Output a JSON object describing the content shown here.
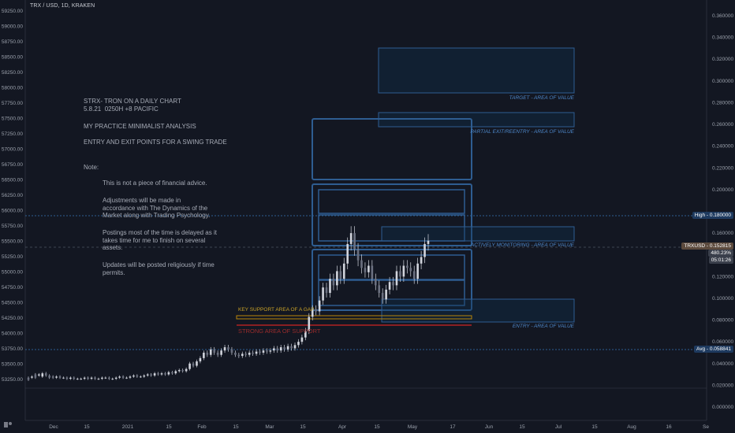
{
  "header": {
    "title": "TRX / USD, 1D, KRAKEN"
  },
  "notes": {
    "title_line1": "STRX- TRON ON A DAILY CHART",
    "title_line2": "5.8.21  0250H +8 PACIFIC",
    "line3": "MY PRACTICE MINIMALIST ANALYSIS",
    "line4": "ENTRY AND EXIT POINTS FOR A SWING TRADE",
    "note_label": "Note:",
    "p1": "This is not a piece of financial advice.",
    "p2": "Adjustments will be made in\naccordance with The Dynamics of the\nMarket along with Trading Psychology.",
    "p3": "Postings most of the time is delayed as it\ntakes time for me to finish on several\nassets.",
    "p4": "Updates will be posted religiously if time\npermits."
  },
  "zones": {
    "target": "TARGET - AREA OF VALUE",
    "partial": "PARTIAL EXIT/REENTRY - AREA OF VALUE",
    "monitoring": "ACTIVELY MONITORING - AREA OF VALUE",
    "entry": "ENTRY - AREA OF VALUE",
    "key_support": "KEY SUPPORT AREA OF A GAP",
    "strong_support": "STRONG AREA OF SUPPORT"
  },
  "badges": {
    "high": "High - 0.180000",
    "last_symbol": "TRXUSD - 0.152815",
    "last_change": "480.23%",
    "countdown": "05:01:26",
    "avg": "Avg - 0.058841"
  },
  "colors": {
    "background": "#131722",
    "candle": "#d1d4dc",
    "zone_blue": "#2e5d91",
    "key_support": "#b8860b",
    "strong_support": "#b22222"
  },
  "chart_data": {
    "type": "candlestick",
    "title": "TRX / USD, 1D, KRAKEN",
    "y_left_ticks": [
      "59250.00",
      "59000.00",
      "58750.00",
      "58500.00",
      "58250.00",
      "58000.00",
      "57750.00",
      "57500.00",
      "57250.00",
      "57000.00",
      "56750.00",
      "56500.00",
      "56250.00",
      "56000.00",
      "55750.00",
      "55500.00",
      "55250.00",
      "55000.00",
      "54750.00",
      "54500.00",
      "54250.00",
      "54000.00",
      "53750.00",
      "53500.00",
      "53250.00"
    ],
    "y_right_ticks": [
      "0.360000",
      "0.340000",
      "0.320000",
      "0.300000",
      "0.280000",
      "0.260000",
      "0.240000",
      "0.220000",
      "0.200000",
      "0.160000",
      "0.140000",
      "0.120000",
      "0.100000",
      "0.080000",
      "0.060000",
      "0.040000",
      "0.020000",
      "0.000000"
    ],
    "x_ticks": [
      "Dec",
      "15",
      "2021",
      "15",
      "Feb",
      "15",
      "Mar",
      "15",
      "Apr",
      "15",
      "May",
      "17",
      "Jun",
      "15",
      "Jul",
      "15",
      "Aug",
      "16",
      "Se"
    ],
    "ylim": [
      0.0,
      0.37
    ],
    "high_line": 0.18,
    "last_price": 0.152815,
    "avg_line": 0.058841,
    "price_path": [
      [
        0.027,
        0.025
      ],
      [
        0.027,
        0.028
      ],
      [
        0.03,
        0.027
      ],
      [
        0.029,
        0.03
      ],
      [
        0.028,
        0.031
      ],
      [
        0.031,
        0.029
      ],
      [
        0.029,
        0.027
      ],
      [
        0.028,
        0.027
      ],
      [
        0.027,
        0.028
      ],
      [
        0.028,
        0.027
      ],
      [
        0.027,
        0.027
      ],
      [
        0.027,
        0.026
      ],
      [
        0.026,
        0.027
      ],
      [
        0.027,
        0.026
      ],
      [
        0.026,
        0.026
      ],
      [
        0.026,
        0.026
      ],
      [
        0.026,
        0.027
      ],
      [
        0.027,
        0.026
      ],
      [
        0.026,
        0.027
      ],
      [
        0.027,
        0.026
      ],
      [
        0.026,
        0.026
      ],
      [
        0.026,
        0.027
      ],
      [
        0.027,
        0.027
      ],
      [
        0.027,
        0.026
      ],
      [
        0.026,
        0.026
      ],
      [
        0.026,
        0.027
      ],
      [
        0.027,
        0.028
      ],
      [
        0.028,
        0.027
      ],
      [
        0.027,
        0.027
      ],
      [
        0.027,
        0.028
      ],
      [
        0.028,
        0.029
      ],
      [
        0.029,
        0.028
      ],
      [
        0.028,
        0.028
      ],
      [
        0.028,
        0.029
      ],
      [
        0.029,
        0.03
      ],
      [
        0.03,
        0.029
      ],
      [
        0.029,
        0.031
      ],
      [
        0.031,
        0.03
      ],
      [
        0.03,
        0.031
      ],
      [
        0.031,
        0.03
      ],
      [
        0.03,
        0.032
      ],
      [
        0.032,
        0.031
      ],
      [
        0.031,
        0.033
      ],
      [
        0.033,
        0.034
      ],
      [
        0.034,
        0.033
      ],
      [
        0.033,
        0.035
      ],
      [
        0.035,
        0.04
      ],
      [
        0.04,
        0.038
      ],
      [
        0.038,
        0.042
      ],
      [
        0.042,
        0.045
      ],
      [
        0.045,
        0.05
      ],
      [
        0.05,
        0.048
      ],
      [
        0.048,
        0.053
      ],
      [
        0.053,
        0.05
      ],
      [
        0.05,
        0.048
      ],
      [
        0.048,
        0.052
      ],
      [
        0.052,
        0.055
      ],
      [
        0.055,
        0.053
      ],
      [
        0.053,
        0.05
      ],
      [
        0.05,
        0.048
      ],
      [
        0.048,
        0.047
      ],
      [
        0.047,
        0.049
      ],
      [
        0.049,
        0.048
      ],
      [
        0.048,
        0.05
      ],
      [
        0.05,
        0.049
      ],
      [
        0.049,
        0.051
      ],
      [
        0.051,
        0.05
      ],
      [
        0.05,
        0.052
      ],
      [
        0.052,
        0.051
      ],
      [
        0.051,
        0.052
      ],
      [
        0.052,
        0.054
      ],
      [
        0.054,
        0.052
      ],
      [
        0.052,
        0.055
      ],
      [
        0.055,
        0.053
      ],
      [
        0.053,
        0.056
      ],
      [
        0.056,
        0.054
      ],
      [
        0.054,
        0.057
      ],
      [
        0.057,
        0.06
      ],
      [
        0.06,
        0.064
      ],
      [
        0.064,
        0.07
      ],
      [
        0.07,
        0.083
      ],
      [
        0.083,
        0.09
      ],
      [
        0.09,
        0.088
      ],
      [
        0.088,
        0.098
      ],
      [
        0.098,
        0.11
      ],
      [
        0.11,
        0.105
      ],
      [
        0.105,
        0.118
      ],
      [
        0.118,
        0.112
      ],
      [
        0.112,
        0.125
      ],
      [
        0.125,
        0.118
      ],
      [
        0.118,
        0.132
      ],
      [
        0.132,
        0.15
      ],
      [
        0.15,
        0.16
      ],
      [
        0.16,
        0.145
      ],
      [
        0.145,
        0.135
      ],
      [
        0.135,
        0.128
      ],
      [
        0.128,
        0.124
      ],
      [
        0.124,
        0.13
      ],
      [
        0.13,
        0.118
      ],
      [
        0.118,
        0.112
      ],
      [
        0.112,
        0.105
      ],
      [
        0.105,
        0.099
      ],
      [
        0.099,
        0.108
      ],
      [
        0.108,
        0.115
      ],
      [
        0.115,
        0.112
      ],
      [
        0.112,
        0.125
      ],
      [
        0.125,
        0.12
      ],
      [
        0.12,
        0.13
      ],
      [
        0.13,
        0.128
      ],
      [
        0.128,
        0.125
      ],
      [
        0.125,
        0.118
      ],
      [
        0.118,
        0.132
      ],
      [
        0.132,
        0.138
      ],
      [
        0.138,
        0.15
      ],
      [
        0.15,
        0.153
      ]
    ]
  }
}
